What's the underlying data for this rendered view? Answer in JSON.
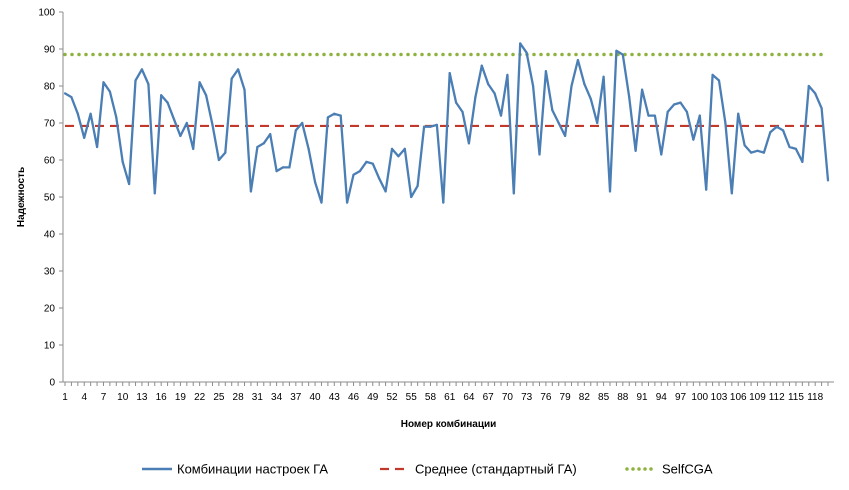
{
  "chart_data": {
    "type": "line",
    "xlabel": "Номер комбинации",
    "ylabel": "Надежность",
    "ylim": [
      0,
      100
    ],
    "yticks": [
      0,
      10,
      20,
      30,
      40,
      50,
      60,
      70,
      80,
      90,
      100
    ],
    "xlim": [
      1,
      120
    ],
    "xtick_labels": [
      "1",
      "4",
      "7",
      "10",
      "13",
      "16",
      "19",
      "22",
      "25",
      "28",
      "31",
      "34",
      "37",
      "40",
      "43",
      "46",
      "49",
      "52",
      "55",
      "58",
      "61",
      "64",
      "67",
      "70",
      "73",
      "76",
      "79",
      "82",
      "85",
      "88",
      "91",
      "94",
      "97",
      "100",
      "103",
      "106",
      "109",
      "112",
      "115",
      "118"
    ],
    "grid": false,
    "legend_position": "bottom",
    "series": [
      {
        "name": "Комбинации настроек ГА",
        "style": "solid",
        "color": "#4a7eb5",
        "values": [
          78.0,
          77.0,
          72.5,
          66.0,
          72.5,
          63.5,
          81.0,
          78.5,
          71.5,
          59.5,
          53.5,
          81.5,
          84.5,
          80.5,
          51.0,
          77.5,
          75.5,
          71.0,
          66.5,
          70.0,
          63.0,
          81.0,
          77.5,
          69.5,
          60.0,
          62.0,
          82.0,
          84.5,
          79.0,
          51.5,
          63.5,
          64.5,
          67.0,
          57.0,
          58.0,
          58.0,
          68.0,
          70.0,
          63.0,
          54.0,
          48.5,
          71.5,
          72.5,
          72.0,
          48.5,
          56.0,
          57.0,
          59.5,
          59.0,
          55.0,
          51.5,
          63.0,
          61.0,
          63.0,
          50.0,
          53.0,
          69.0,
          69.0,
          69.5,
          48.5,
          83.5,
          75.5,
          73.0,
          64.5,
          77.0,
          85.5,
          80.5,
          78.0,
          72.0,
          83.0,
          51.0,
          91.5,
          89.0,
          80.0,
          61.5,
          84.0,
          73.5,
          70.0,
          66.5,
          80.0,
          87.0,
          80.5,
          76.5,
          70.0,
          82.5,
          51.5,
          89.5,
          88.5,
          77.0,
          62.5,
          79.0,
          72.0,
          72.0,
          61.5,
          73.0,
          75.0,
          75.5,
          73.0,
          65.5,
          72.0,
          52.0,
          83.0,
          81.5,
          70.0,
          51.0,
          72.5,
          64.0,
          62.0,
          62.5,
          62.0,
          67.5,
          69.0,
          68.0,
          63.5,
          63.0,
          59.5,
          80.0,
          78.0,
          74.0,
          54.5
        ]
      },
      {
        "name": "Среднее (стандартный ГА)",
        "style": "dashed",
        "color": "#c0392b",
        "constant": 69.2
      },
      {
        "name": "SelfCGA",
        "style": "dotted",
        "color": "#8db33e",
        "constant": 88.5
      }
    ]
  }
}
